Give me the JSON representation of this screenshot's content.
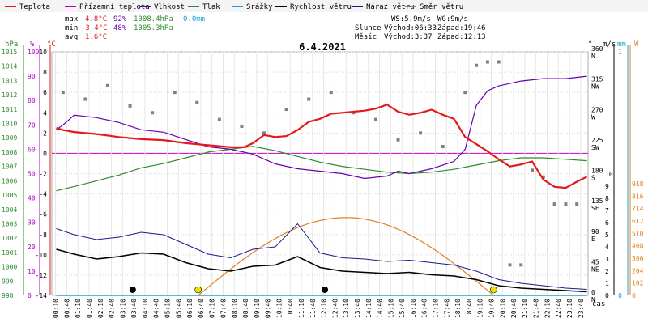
{
  "legend": [
    {
      "label": "Teplota",
      "color": "#e31a1c"
    },
    {
      "label": "Přízemní teplota",
      "color": "#b000c8"
    },
    {
      "label": "Vlhkost",
      "color": "#6a00b0"
    },
    {
      "label": "Tlak",
      "color": "#2e8b2e"
    },
    {
      "label": "Srážky",
      "color": "#20a0d0"
    },
    {
      "label": "Rychlost větru",
      "color": "#000000"
    },
    {
      "label": "Náraz větru",
      "color": "#1a1a8a"
    },
    {
      "label": "Směr větru",
      "color": "#808080"
    }
  ],
  "stats": {
    "max_label": "max",
    "max_temp": "4.8°C",
    "max_hum": "92%",
    "max_press": "1008.4hPa",
    "max_rain": "0.0mm",
    "min_label": "min",
    "min_temp": "-3.4°C",
    "min_hum": "48%",
    "min_press": "1005.3hPa",
    "avg_label": "avg",
    "avg_temp": "1.6°C",
    "ws": "WS:5.9m/s",
    "wg": "WG:9m/s",
    "sun_label": "Slunce",
    "sunrise": "Východ:06:33",
    "sunset": "Západ:19:46",
    "moon_label": "Měsíc",
    "moonrise": "Východ:3:37",
    "moonset": "Západ:12:13"
  },
  "date": "6.4.2021",
  "axes": {
    "hpa_unit": "hPa",
    "pct_unit": "%",
    "c_unit": "°C",
    "deg_unit": "°",
    "ms_unit": "m/s",
    "mm_unit": "mm",
    "w_unit": "W",
    "time_label": "čas",
    "hpa_ticks": [
      "998",
      "999",
      "1000",
      "1001",
      "1002",
      "1003",
      "1004",
      "1005",
      "1006",
      "1007",
      "1008",
      "1009",
      "1010",
      "1011",
      "1012",
      "1013",
      "1014",
      "1015"
    ],
    "pct_ticks": [
      "0",
      "10",
      "20",
      "30",
      "40",
      "50",
      "60",
      "70",
      "80",
      "90",
      "100"
    ],
    "c_ticks": [
      "-14",
      "-12",
      "-10",
      "-8",
      "-6",
      "-4",
      "-2",
      "0",
      "2",
      "4",
      "6",
      "8",
      "10"
    ],
    "dir_ticks": [
      {
        "deg": "0",
        "dir": "N"
      },
      {
        "deg": "45",
        "dir": "NE"
      },
      {
        "deg": "90",
        "dir": "E"
      },
      {
        "deg": "135",
        "dir": "SE"
      },
      {
        "deg": "180",
        "dir": "S"
      },
      {
        "deg": "225",
        "dir": "SW"
      },
      {
        "deg": "270",
        "dir": "W"
      },
      {
        "deg": "315",
        "dir": "NW"
      },
      {
        "deg": "360",
        "dir": "N"
      }
    ],
    "ms_ticks": [
      "0",
      "1",
      "2",
      "3",
      "4",
      "5",
      "6",
      "7",
      "8",
      "9",
      "10"
    ],
    "mm_ticks": [
      "0",
      "1"
    ],
    "w_ticks": [
      "0",
      "102",
      "204",
      "306",
      "408",
      "510",
      "612",
      "714",
      "816",
      "918"
    ],
    "time_ticks": [
      "00:10",
      "00:40",
      "01:10",
      "01:40",
      "02:10",
      "02:40",
      "03:10",
      "03:40",
      "04:10",
      "04:40",
      "05:10",
      "05:40",
      "06:10",
      "06:40",
      "07:10",
      "07:40",
      "08:10",
      "08:40",
      "09:10",
      "09:40",
      "10:10",
      "10:40",
      "11:10",
      "11:40",
      "12:10",
      "12:40",
      "13:10",
      "13:40",
      "14:10",
      "14:40",
      "15:10",
      "15:40",
      "16:10",
      "16:40",
      "17:10",
      "17:40",
      "18:10",
      "18:40",
      "19:10",
      "19:40",
      "20:10",
      "20:40",
      "21:10",
      "21:40",
      "22:10",
      "22:40",
      "23:10",
      "23:40"
    ]
  },
  "chart_data": {
    "type": "line",
    "title": "6.4.2021",
    "x_range": [
      "00:10",
      "23:59"
    ],
    "ylim_c": [
      -14,
      10
    ],
    "ylim_hpa": [
      998,
      1015
    ],
    "ylim_pct": [
      0,
      100
    ],
    "ylim_ms": [
      0,
      10
    ],
    "ylim_deg": [
      0,
      360
    ],
    "ylim_w": [
      0,
      918
    ],
    "series": [
      {
        "name": "Teplota",
        "unit": "°C",
        "color": "#e31a1c",
        "x": [
          0.2,
          0.5,
          1,
          2,
          3,
          4,
          5,
          6,
          7,
          8,
          8.6,
          9,
          9.5,
          10,
          10.5,
          11,
          11.5,
          12,
          12.5,
          13,
          13.5,
          14,
          14.5,
          15,
          15.5,
          16,
          16.5,
          17,
          17.5,
          18,
          18.5,
          19,
          19.5,
          20,
          20.5,
          21,
          21.5,
          22,
          22.5,
          23,
          23.5,
          23.95
        ],
        "y": [
          2.5,
          2.3,
          2.1,
          1.9,
          1.6,
          1.4,
          1.3,
          1.0,
          0.8,
          0.6,
          0.6,
          1.0,
          1.8,
          1.6,
          1.7,
          2.3,
          3.1,
          3.4,
          3.9,
          4.0,
          4.1,
          4.2,
          4.4,
          4.8,
          4.1,
          3.8,
          4.0,
          4.3,
          3.8,
          3.4,
          1.6,
          0.9,
          0.2,
          -0.6,
          -1.3,
          -1.1,
          -0.8,
          -2.6,
          -3.3,
          -3.4,
          -2.8,
          -2.3
        ]
      },
      {
        "name": "Vlhkost",
        "unit": "%",
        "color": "#6a00b0",
        "x": [
          0.2,
          0.5,
          1,
          2,
          3,
          4,
          5,
          6,
          7,
          8,
          9,
          10,
          11,
          12,
          13,
          14,
          15,
          15.5,
          16,
          17,
          18,
          18.5,
          19,
          19.5,
          20,
          21,
          22,
          23,
          23.95
        ],
        "y": [
          68,
          70,
          74,
          73,
          71,
          68,
          67,
          64,
          61,
          60,
          58,
          54,
          52,
          51,
          50,
          48,
          49,
          51,
          50,
          52,
          55,
          60,
          78,
          84,
          86,
          88,
          89,
          89,
          90
        ]
      },
      {
        "name": "Tlak",
        "unit": "hPa",
        "color": "#2e8b2e",
        "x": [
          0.2,
          1,
          2,
          3,
          4,
          5,
          6,
          7,
          8,
          9,
          10,
          11,
          12,
          13,
          14,
          15,
          16,
          17,
          18,
          19,
          20,
          21,
          22,
          23,
          23.95
        ],
        "y": [
          1005.3,
          1005.6,
          1006.0,
          1006.4,
          1006.9,
          1007.2,
          1007.6,
          1008.0,
          1008.2,
          1008.4,
          1008.1,
          1007.7,
          1007.3,
          1007.0,
          1006.8,
          1006.6,
          1006.5,
          1006.6,
          1006.8,
          1007.1,
          1007.4,
          1007.6,
          1007.6,
          1007.5,
          1007.4
        ]
      },
      {
        "name": "Rychlost větru",
        "unit": "m/s",
        "color": "#000000",
        "x": [
          0.2,
          1,
          2,
          3,
          4,
          5,
          6,
          7,
          8,
          9,
          10,
          11,
          12,
          13,
          14,
          15,
          16,
          17,
          18,
          19,
          20,
          21,
          22,
          23,
          23.95
        ],
        "y": [
          3.8,
          3.4,
          3.0,
          3.2,
          3.5,
          3.4,
          2.7,
          2.2,
          2.0,
          2.4,
          2.5,
          3.2,
          2.3,
          2.0,
          1.9,
          1.8,
          1.9,
          1.7,
          1.6,
          1.3,
          0.8,
          0.6,
          0.5,
          0.4,
          0.3
        ]
      },
      {
        "name": "Náraz větru",
        "unit": "m/s",
        "color": "#1a1a8a",
        "x": [
          0.2,
          1,
          2,
          3,
          4,
          5,
          6,
          7,
          8,
          9,
          10,
          11,
          12,
          13,
          14,
          15,
          16,
          17,
          18,
          19,
          20,
          21,
          22,
          23,
          23.95
        ],
        "y": [
          5.5,
          5.0,
          4.6,
          4.8,
          5.2,
          5.0,
          4.2,
          3.4,
          3.1,
          3.8,
          4.0,
          5.9,
          3.5,
          3.1,
          3.0,
          2.8,
          2.9,
          2.7,
          2.5,
          2.0,
          1.3,
          1.0,
          0.8,
          0.6,
          0.5
        ]
      },
      {
        "name": "Směr větru",
        "unit": "°",
        "color": "#808080",
        "x": [
          0.5,
          1.5,
          2.5,
          3.5,
          4.5,
          5.5,
          6.5,
          7.5,
          8.5,
          9.5,
          10.5,
          11.5,
          12.5,
          13.5,
          14.5,
          15.5,
          16.5,
          17.5,
          18.5,
          19,
          19.5,
          20,
          20.5,
          21,
          21.5,
          22,
          22.5,
          23,
          23.5
        ],
        "y": [
          300,
          290,
          310,
          280,
          270,
          300,
          285,
          260,
          250,
          240,
          275,
          290,
          300,
          270,
          260,
          230,
          240,
          220,
          300,
          340,
          345,
          345,
          45,
          45,
          185,
          175,
          135,
          135,
          135
        ]
      },
      {
        "name": "Srážky",
        "unit": "mm",
        "color": "#20a0d0",
        "x": [
          0.2,
          23.95
        ],
        "y": [
          0.0,
          0.0
        ]
      }
    ],
    "solar": {
      "unit": "W",
      "color": "#e08020",
      "x": [
        6.55,
        14.0,
        19.77
      ],
      "y": [
        0,
        640,
        0
      ]
    }
  }
}
